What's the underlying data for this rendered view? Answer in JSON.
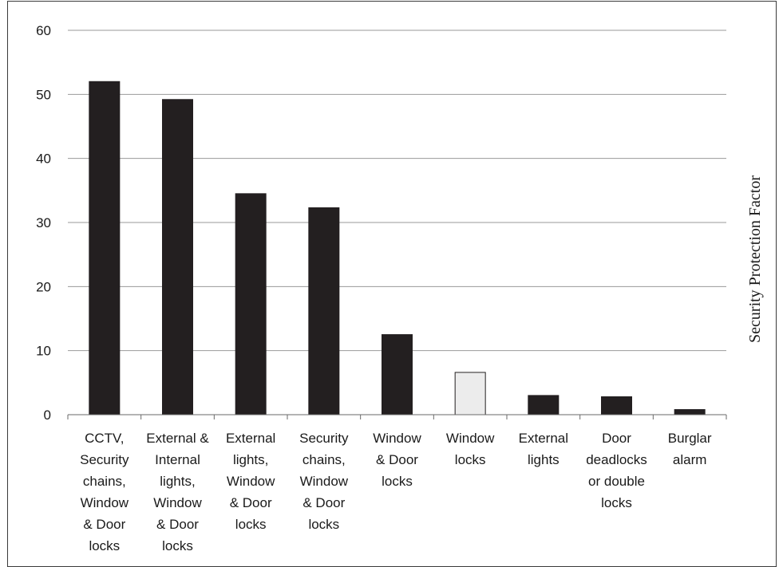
{
  "chart_data": {
    "type": "bar",
    "title": "",
    "xlabel": "",
    "ylabel": "Security Protection Factor",
    "ylim": [
      0,
      60
    ],
    "yticks": [
      0,
      10,
      20,
      30,
      40,
      50,
      60
    ],
    "grid": true,
    "categories": [
      [
        "CCTV,",
        "Security",
        "chains,",
        "Window",
        "& Door",
        "locks"
      ],
      [
        "External &",
        "Internal",
        "lights,",
        "Window",
        "& Door",
        "locks"
      ],
      [
        "External",
        "lights,",
        "Window",
        "& Door",
        "locks"
      ],
      [
        "Security",
        "chains,",
        "Window",
        "& Door",
        "locks"
      ],
      [
        "Window",
        "& Door",
        "locks"
      ],
      [
        "Window",
        "locks"
      ],
      [
        "External",
        "lights"
      ],
      [
        "Door",
        "deadlocks",
        "or double",
        "locks"
      ],
      [
        "Burglar",
        "alarm"
      ]
    ],
    "values": [
      52,
      49.2,
      34.5,
      32.3,
      12.5,
      6.6,
      3.0,
      2.8,
      0.8
    ],
    "bar_colors": [
      "#231f20",
      "#231f20",
      "#231f20",
      "#231f20",
      "#231f20",
      "#ececec",
      "#231f20",
      "#231f20",
      "#231f20"
    ]
  }
}
